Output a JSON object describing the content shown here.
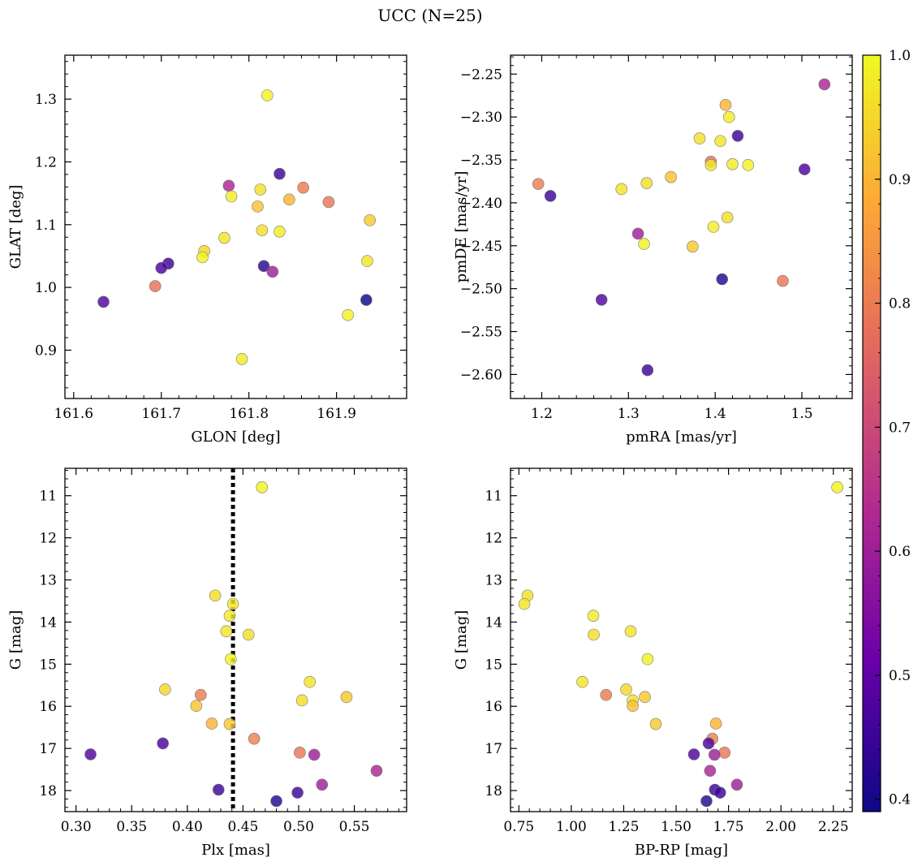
{
  "figure": {
    "title": "UCC (N=25)",
    "colorbar": {
      "cmap": [
        "#0d0887",
        "#6a00a8",
        "#b12a90",
        "#e16462",
        "#fca636",
        "#f0f921"
      ],
      "range": [
        0.39,
        1.0
      ],
      "ticks": [
        0.4,
        0.5,
        0.6,
        0.7,
        0.8,
        0.9,
        1.0
      ],
      "tick_labels": [
        "0.4",
        "0.5",
        "0.6",
        "0.7",
        "0.8",
        "0.9",
        "1.0"
      ]
    }
  },
  "chart_data": [
    {
      "type": "scatter",
      "xlabel": "GLON [deg]",
      "ylabel": "GLAT [deg]",
      "xlim": [
        161.59,
        161.98
      ],
      "ylim": [
        0.823,
        1.37
      ],
      "yinvert": false,
      "xticks": [
        161.6,
        161.7,
        161.8,
        161.9
      ],
      "xtick_labels": [
        "161.6",
        "161.7",
        "161.8",
        "161.9"
      ],
      "yticks": [
        0.9,
        1.0,
        1.1,
        1.2,
        1.3
      ],
      "ytick_labels": [
        "0.9",
        "1.0",
        "1.1",
        "1.2",
        "1.3"
      ],
      "points": [
        {
          "x": 161.821,
          "y": 1.306,
          "c": 0.99
        },
        {
          "x": 161.835,
          "y": 1.181,
          "c": 0.45
        },
        {
          "x": 161.777,
          "y": 1.162,
          "c": 0.62
        },
        {
          "x": 161.862,
          "y": 1.159,
          "c": 0.8
        },
        {
          "x": 161.813,
          "y": 1.156,
          "c": 0.96
        },
        {
          "x": 161.78,
          "y": 1.145,
          "c": 0.98
        },
        {
          "x": 161.846,
          "y": 1.14,
          "c": 0.9
        },
        {
          "x": 161.891,
          "y": 1.136,
          "c": 0.79
        },
        {
          "x": 161.81,
          "y": 1.129,
          "c": 0.92
        },
        {
          "x": 161.938,
          "y": 1.107,
          "c": 0.93
        },
        {
          "x": 161.815,
          "y": 1.091,
          "c": 0.96
        },
        {
          "x": 161.835,
          "y": 1.089,
          "c": 0.98
        },
        {
          "x": 161.772,
          "y": 1.079,
          "c": 0.97
        },
        {
          "x": 161.749,
          "y": 1.058,
          "c": 0.95
        },
        {
          "x": 161.747,
          "y": 1.048,
          "c": 0.99
        },
        {
          "x": 161.935,
          "y": 1.042,
          "c": 0.97
        },
        {
          "x": 161.708,
          "y": 1.038,
          "c": 0.45
        },
        {
          "x": 161.817,
          "y": 1.034,
          "c": 0.42
        },
        {
          "x": 161.7,
          "y": 1.031,
          "c": 0.47
        },
        {
          "x": 161.827,
          "y": 1.025,
          "c": 0.6
        },
        {
          "x": 161.693,
          "y": 1.002,
          "c": 0.78
        },
        {
          "x": 161.934,
          "y": 0.98,
          "c": 0.39
        },
        {
          "x": 161.634,
          "y": 0.977,
          "c": 0.48
        },
        {
          "x": 161.913,
          "y": 0.956,
          "c": 0.99
        },
        {
          "x": 161.792,
          "y": 0.886,
          "c": 0.98
        }
      ]
    },
    {
      "type": "scatter",
      "xlabel": "pmRA [mas/yr]",
      "ylabel": "pmDE [mas/yr]",
      "xlim": [
        1.164,
        1.558
      ],
      "ylim": [
        -2.628,
        -2.228
      ],
      "yinvert": false,
      "xticks": [
        1.2,
        1.3,
        1.4,
        1.5
      ],
      "xtick_labels": [
        "1.2",
        "1.3",
        "1.4",
        "1.5"
      ],
      "yticks": [
        -2.6,
        -2.55,
        -2.5,
        -2.45,
        -2.4,
        -2.35,
        -2.3,
        -2.25
      ],
      "ytick_labels": [
        "−2.60",
        "−2.55",
        "−2.50",
        "−2.45",
        "−2.40",
        "−2.35",
        "−2.30",
        "−2.25"
      ],
      "points": [
        {
          "x": 1.526,
          "y": -2.262,
          "c": 0.62
        },
        {
          "x": 1.412,
          "y": -2.286,
          "c": 0.9
        },
        {
          "x": 1.416,
          "y": -2.3,
          "c": 0.98
        },
        {
          "x": 1.426,
          "y": -2.322,
          "c": 0.45
        },
        {
          "x": 1.382,
          "y": -2.325,
          "c": 0.96
        },
        {
          "x": 1.406,
          "y": -2.328,
          "c": 0.97
        },
        {
          "x": 1.395,
          "y": -2.352,
          "c": 0.78
        },
        {
          "x": 1.42,
          "y": -2.355,
          "c": 0.98
        },
        {
          "x": 1.438,
          "y": -2.356,
          "c": 0.99
        },
        {
          "x": 1.395,
          "y": -2.356,
          "c": 0.97
        },
        {
          "x": 1.503,
          "y": -2.361,
          "c": 0.47
        },
        {
          "x": 1.349,
          "y": -2.37,
          "c": 0.92
        },
        {
          "x": 1.321,
          "y": -2.377,
          "c": 0.96
        },
        {
          "x": 1.196,
          "y": -2.378,
          "c": 0.8
        },
        {
          "x": 1.292,
          "y": -2.384,
          "c": 0.97
        },
        {
          "x": 1.21,
          "y": -2.392,
          "c": 0.45
        },
        {
          "x": 1.414,
          "y": -2.417,
          "c": 0.96
        },
        {
          "x": 1.398,
          "y": -2.428,
          "c": 0.98
        },
        {
          "x": 1.311,
          "y": -2.436,
          "c": 0.6
        },
        {
          "x": 1.318,
          "y": -2.448,
          "c": 0.99
        },
        {
          "x": 1.374,
          "y": -2.451,
          "c": 0.93
        },
        {
          "x": 1.478,
          "y": -2.491,
          "c": 0.79
        },
        {
          "x": 1.408,
          "y": -2.489,
          "c": 0.42
        },
        {
          "x": 1.269,
          "y": -2.513,
          "c": 0.48
        },
        {
          "x": 1.322,
          "y": -2.595,
          "c": 0.45
        }
      ]
    },
    {
      "type": "scatter",
      "xlabel": "Plx [mas]",
      "ylabel": "G [mag]",
      "xlim": [
        0.29,
        0.597
      ],
      "ylim": [
        10.35,
        18.5
      ],
      "yinvert": true,
      "vline": {
        "x": 0.441,
        "style": "dotted",
        "color": "#000000"
      },
      "xticks": [
        0.3,
        0.35,
        0.4,
        0.45,
        0.5,
        0.55
      ],
      "xtick_labels": [
        "0.30",
        "0.35",
        "0.40",
        "0.45",
        "0.50",
        "0.55"
      ],
      "yticks": [
        11,
        12,
        13,
        14,
        15,
        16,
        17,
        18
      ],
      "ytick_labels": [
        "11",
        "12",
        "13",
        "14",
        "15",
        "16",
        "17",
        "18"
      ],
      "points": [
        {
          "x": 0.467,
          "y": 10.8,
          "c": 0.99
        },
        {
          "x": 0.425,
          "y": 13.37,
          "c": 0.96
        },
        {
          "x": 0.441,
          "y": 13.57,
          "c": 0.97
        },
        {
          "x": 0.438,
          "y": 13.85,
          "c": 0.98
        },
        {
          "x": 0.435,
          "y": 14.22,
          "c": 0.97
        },
        {
          "x": 0.455,
          "y": 14.3,
          "c": 0.96
        },
        {
          "x": 0.439,
          "y": 14.88,
          "c": 0.99
        },
        {
          "x": 0.51,
          "y": 15.42,
          "c": 0.97
        },
        {
          "x": 0.38,
          "y": 15.6,
          "c": 0.95
        },
        {
          "x": 0.412,
          "y": 15.73,
          "c": 0.8
        },
        {
          "x": 0.543,
          "y": 15.78,
          "c": 0.93
        },
        {
          "x": 0.503,
          "y": 15.86,
          "c": 0.96
        },
        {
          "x": 0.408,
          "y": 15.99,
          "c": 0.92
        },
        {
          "x": 0.422,
          "y": 16.41,
          "c": 0.9
        },
        {
          "x": 0.438,
          "y": 16.42,
          "c": 0.93
        },
        {
          "x": 0.46,
          "y": 16.77,
          "c": 0.81
        },
        {
          "x": 0.378,
          "y": 16.88,
          "c": 0.47
        },
        {
          "x": 0.501,
          "y": 17.1,
          "c": 0.79
        },
        {
          "x": 0.514,
          "y": 17.15,
          "c": 0.6
        },
        {
          "x": 0.313,
          "y": 17.14,
          "c": 0.48
        },
        {
          "x": 0.57,
          "y": 17.53,
          "c": 0.62
        },
        {
          "x": 0.521,
          "y": 17.86,
          "c": 0.6
        },
        {
          "x": 0.428,
          "y": 17.98,
          "c": 0.45
        },
        {
          "x": 0.499,
          "y": 18.05,
          "c": 0.45
        },
        {
          "x": 0.48,
          "y": 18.25,
          "c": 0.42
        }
      ]
    },
    {
      "type": "scatter",
      "xlabel": "BP-RP [mag]",
      "ylabel": "G [mag]",
      "xlim": [
        0.71,
        2.34
      ],
      "ylim": [
        10.35,
        18.5
      ],
      "yinvert": true,
      "xticks": [
        0.75,
        1.0,
        1.25,
        1.5,
        1.75,
        2.0,
        2.25
      ],
      "xtick_labels": [
        "0.75",
        "1.00",
        "1.25",
        "1.50",
        "1.75",
        "2.00",
        "2.25"
      ],
      "yticks": [
        11,
        12,
        13,
        14,
        15,
        16,
        17,
        18
      ],
      "ytick_labels": [
        "11",
        "12",
        "13",
        "14",
        "15",
        "16",
        "17",
        "18"
      ],
      "points": [
        {
          "x": 2.269,
          "y": 10.8,
          "c": 0.99
        },
        {
          "x": 0.791,
          "y": 13.37,
          "c": 0.96
        },
        {
          "x": 0.776,
          "y": 13.57,
          "c": 0.97
        },
        {
          "x": 1.105,
          "y": 13.85,
          "c": 0.98
        },
        {
          "x": 1.283,
          "y": 14.22,
          "c": 0.97
        },
        {
          "x": 1.107,
          "y": 14.3,
          "c": 0.96
        },
        {
          "x": 1.364,
          "y": 14.88,
          "c": 0.99
        },
        {
          "x": 1.053,
          "y": 15.42,
          "c": 0.97
        },
        {
          "x": 1.262,
          "y": 15.6,
          "c": 0.95
        },
        {
          "x": 1.166,
          "y": 15.73,
          "c": 0.8
        },
        {
          "x": 1.351,
          "y": 15.78,
          "c": 0.93
        },
        {
          "x": 1.293,
          "y": 15.86,
          "c": 0.96
        },
        {
          "x": 1.293,
          "y": 15.99,
          "c": 0.92
        },
        {
          "x": 1.69,
          "y": 16.41,
          "c": 0.9
        },
        {
          "x": 1.403,
          "y": 16.42,
          "c": 0.93
        },
        {
          "x": 1.673,
          "y": 16.77,
          "c": 0.81
        },
        {
          "x": 1.655,
          "y": 16.88,
          "c": 0.47
        },
        {
          "x": 1.731,
          "y": 17.1,
          "c": 0.79
        },
        {
          "x": 1.683,
          "y": 17.15,
          "c": 0.6
        },
        {
          "x": 1.585,
          "y": 17.14,
          "c": 0.48
        },
        {
          "x": 1.662,
          "y": 17.53,
          "c": 0.62
        },
        {
          "x": 1.79,
          "y": 17.86,
          "c": 0.6
        },
        {
          "x": 1.685,
          "y": 17.98,
          "c": 0.45
        },
        {
          "x": 1.71,
          "y": 18.05,
          "c": 0.45
        },
        {
          "x": 1.645,
          "y": 18.25,
          "c": 0.42
        }
      ]
    }
  ]
}
